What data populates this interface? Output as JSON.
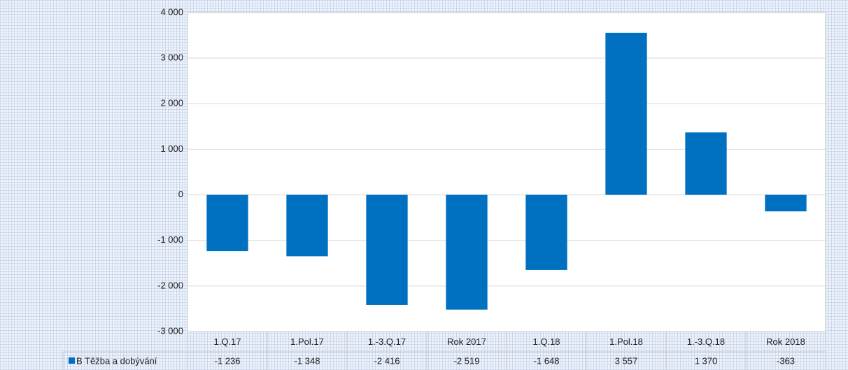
{
  "chart_data": {
    "type": "bar",
    "categories": [
      "1.Q.17",
      "1.Pol.17",
      "1.-3.Q.17",
      "Rok 2017",
      "1.Q.18",
      "1.Pol.18",
      "1.-3.Q.18",
      "Rok 2018"
    ],
    "series": [
      {
        "name": "B Těžba a dobývání",
        "color": "#0070c0",
        "values": [
          -1236,
          -1348,
          -2416,
          -2519,
          -1648,
          3557,
          1370,
          -363
        ],
        "value_labels": [
          "-1 236",
          "-1 348",
          "-2 416",
          "-2 519",
          "-1 648",
          "3 557",
          "1 370",
          "-363"
        ]
      }
    ],
    "ylim": [
      -3000,
      4000
    ],
    "yticks": [
      {
        "value": -3000,
        "label": "-3 000"
      },
      {
        "value": -2000,
        "label": "-2 000"
      },
      {
        "value": -1000,
        "label": "-1 000"
      },
      0,
      {
        "value": 1000,
        "label": "1 000"
      },
      {
        "value": 2000,
        "label": "2 000"
      },
      {
        "value": 3000,
        "label": "3 000"
      },
      {
        "value": 4000,
        "label": "4 000"
      }
    ],
    "grid": true
  }
}
